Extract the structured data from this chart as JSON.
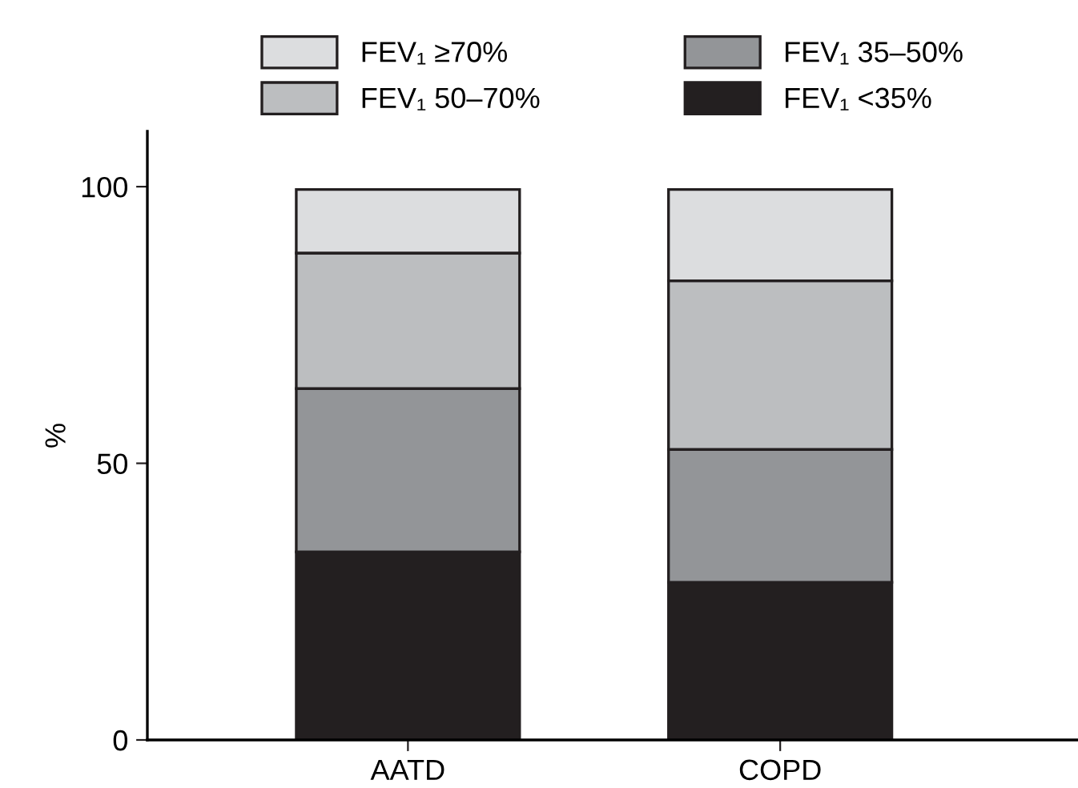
{
  "chart_data": {
    "type": "bar",
    "stacked": true,
    "ylabel": "%",
    "categories": [
      "AATD",
      "COPD"
    ],
    "series": [
      {
        "name": "FEV₁ <35%",
        "color": "#231f20",
        "values": [
          34,
          28.5
        ]
      },
      {
        "name": "FEV₁ 35–50%",
        "color": "#939598",
        "values": [
          29.5,
          24
        ]
      },
      {
        "name": "FEV₁ 50–70%",
        "color": "#bcbec0",
        "values": [
          24.5,
          30.5
        ]
      },
      {
        "name": "FEV₁ ≥70%",
        "color": "#dcdddf",
        "values": [
          11.5,
          16.5
        ]
      }
    ],
    "ylim": [
      0,
      110
    ],
    "yticks": [
      0,
      50,
      100
    ],
    "legend": "top",
    "grid": false
  }
}
